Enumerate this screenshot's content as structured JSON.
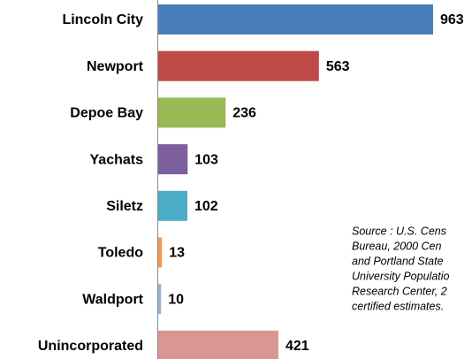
{
  "chart_data": {
    "type": "bar",
    "orientation": "horizontal",
    "categories": [
      "Lincoln City",
      "Newport",
      "Depoe Bay",
      "Yachats",
      "Siletz",
      "Toledo",
      "Waldport",
      "Unincorporated"
    ],
    "values": [
      963,
      563,
      236,
      103,
      102,
      13,
      10,
      421
    ],
    "colors": [
      "#4a7ebb",
      "#be4b48",
      "#98b954",
      "#7d5fa0",
      "#4aacc6",
      "#f79646",
      "#95b3d7",
      "#d99694"
    ],
    "annotation": [
      "Source : U.S. Cens",
      "Bureau, 2000  Cen",
      "and Portland State",
      "University Populatio",
      "Research Center, 2",
      "certified estimates."
    ]
  }
}
